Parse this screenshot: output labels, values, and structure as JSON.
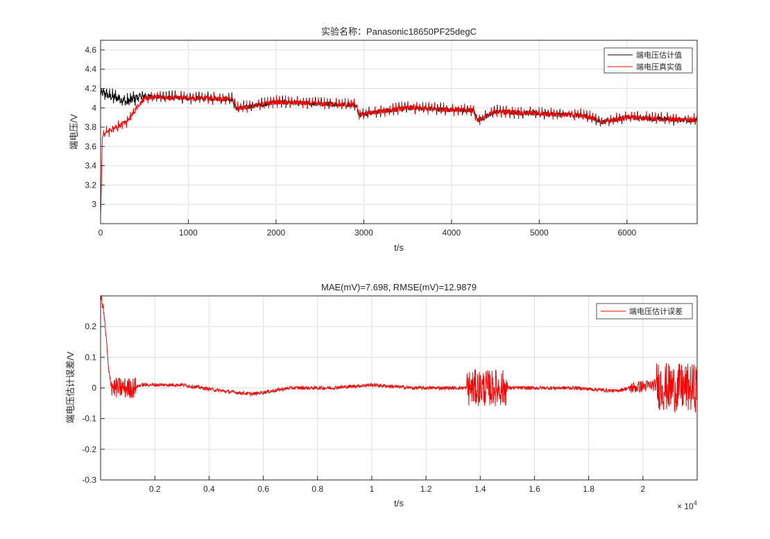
{
  "chart_data": [
    {
      "type": "line",
      "title": "实验名称：Panasonic18650PF25degC",
      "xlabel": "t/s",
      "ylabel": "端电压/V",
      "xlim": [
        0,
        6800
      ],
      "ylim": [
        2.8,
        4.7
      ],
      "x_ticks": [
        0,
        1000,
        2000,
        3000,
        4000,
        5000,
        6000
      ],
      "x_tick_labels": [
        "0",
        "1000",
        "2000",
        "3000",
        "4000",
        "5000",
        "6000"
      ],
      "y_ticks": [
        3,
        3.2,
        3.4,
        3.6,
        3.8,
        4,
        4.2,
        4.4,
        4.6
      ],
      "y_tick_labels": [
        "3",
        "3.2",
        "3.4",
        "3.6",
        "3.8",
        "4",
        "4.2",
        "4.4",
        "4.6"
      ],
      "grid": true,
      "legend_position": "top-right",
      "series": [
        {
          "name": "端电压估计值",
          "color": "#000000",
          "x": [
            0,
            50,
            100,
            200,
            300,
            400,
            500,
            700,
            1000,
            1500,
            1550,
            2000,
            2500,
            2900,
            2950,
            3500,
            4000,
            4250,
            4300,
            4500,
            5000,
            5500,
            5650,
            5700,
            6000,
            6500,
            6800
          ],
          "y": [
            4.15,
            4.15,
            4.12,
            4.1,
            4.06,
            4.1,
            4.12,
            4.11,
            4.1,
            4.09,
            3.99,
            4.06,
            4.04,
            4.03,
            3.93,
            4.0,
            3.98,
            3.97,
            3.87,
            3.96,
            3.94,
            3.92,
            3.88,
            3.85,
            3.9,
            3.88,
            3.87
          ]
        },
        {
          "name": "端电压真实值",
          "color": "#ff0000",
          "x": [
            0,
            20,
            50,
            100,
            200,
            300,
            400,
            500,
            700,
            1000,
            1500,
            1550,
            2000,
            2500,
            2900,
            2950,
            3500,
            4000,
            4250,
            4300,
            4500,
            5000,
            5500,
            5650,
            5700,
            6000,
            6500,
            6800
          ],
          "y": [
            2.85,
            3.7,
            3.74,
            3.76,
            3.8,
            3.86,
            3.98,
            4.1,
            4.11,
            4.1,
            4.09,
            3.99,
            4.06,
            4.04,
            4.03,
            3.93,
            4.0,
            3.98,
            3.97,
            3.87,
            3.96,
            3.94,
            3.92,
            3.88,
            3.85,
            3.9,
            3.88,
            3.87
          ]
        }
      ]
    },
    {
      "type": "line",
      "title": "MAE(mV)=7.698, RMSE(mV)=12.9879",
      "xlabel": "t/s",
      "ylabel": "端电压估计误差/V",
      "xlim": [
        0,
        22000
      ],
      "ylim": [
        -0.3,
        0.3
      ],
      "x_ticks": [
        2000,
        4000,
        6000,
        8000,
        10000,
        12000,
        14000,
        16000,
        18000,
        20000
      ],
      "x_tick_labels": [
        "0.2",
        "0.4",
        "0.6",
        "0.8",
        "1",
        "1.2",
        "1.4",
        "1.6",
        "1.8",
        "2"
      ],
      "x_exponent_label": "× 10",
      "x_exponent": "4",
      "y_ticks": [
        -0.3,
        -0.2,
        -0.1,
        0,
        0.1,
        0.2
      ],
      "y_tick_labels": [
        "-0.3",
        "-0.2",
        "-0.1",
        "0",
        "0.1",
        "0.2"
      ],
      "grid": true,
      "legend_position": "top-right",
      "series": [
        {
          "name": "端电压估计误差",
          "color": "#ff0000",
          "x": [
            0,
            100,
            200,
            300,
            400,
            500,
            600,
            1200,
            1500,
            3000,
            4500,
            5600,
            7000,
            8500,
            10000,
            11500,
            12500,
            13500,
            14000,
            15000,
            16000,
            17500,
            19000,
            19500,
            20500,
            21000,
            22000
          ],
          "y": [
            0.3,
            0.26,
            0.17,
            0.05,
            0.01,
            0.0,
            0.0,
            0.0,
            0.01,
            0.01,
            -0.01,
            -0.02,
            0.0,
            0.0,
            0.01,
            0.0,
            0.0,
            0.0,
            0.0,
            0.0,
            0.0,
            0.0,
            -0.01,
            0.0,
            0.01,
            0.0,
            0.0
          ]
        }
      ]
    }
  ]
}
